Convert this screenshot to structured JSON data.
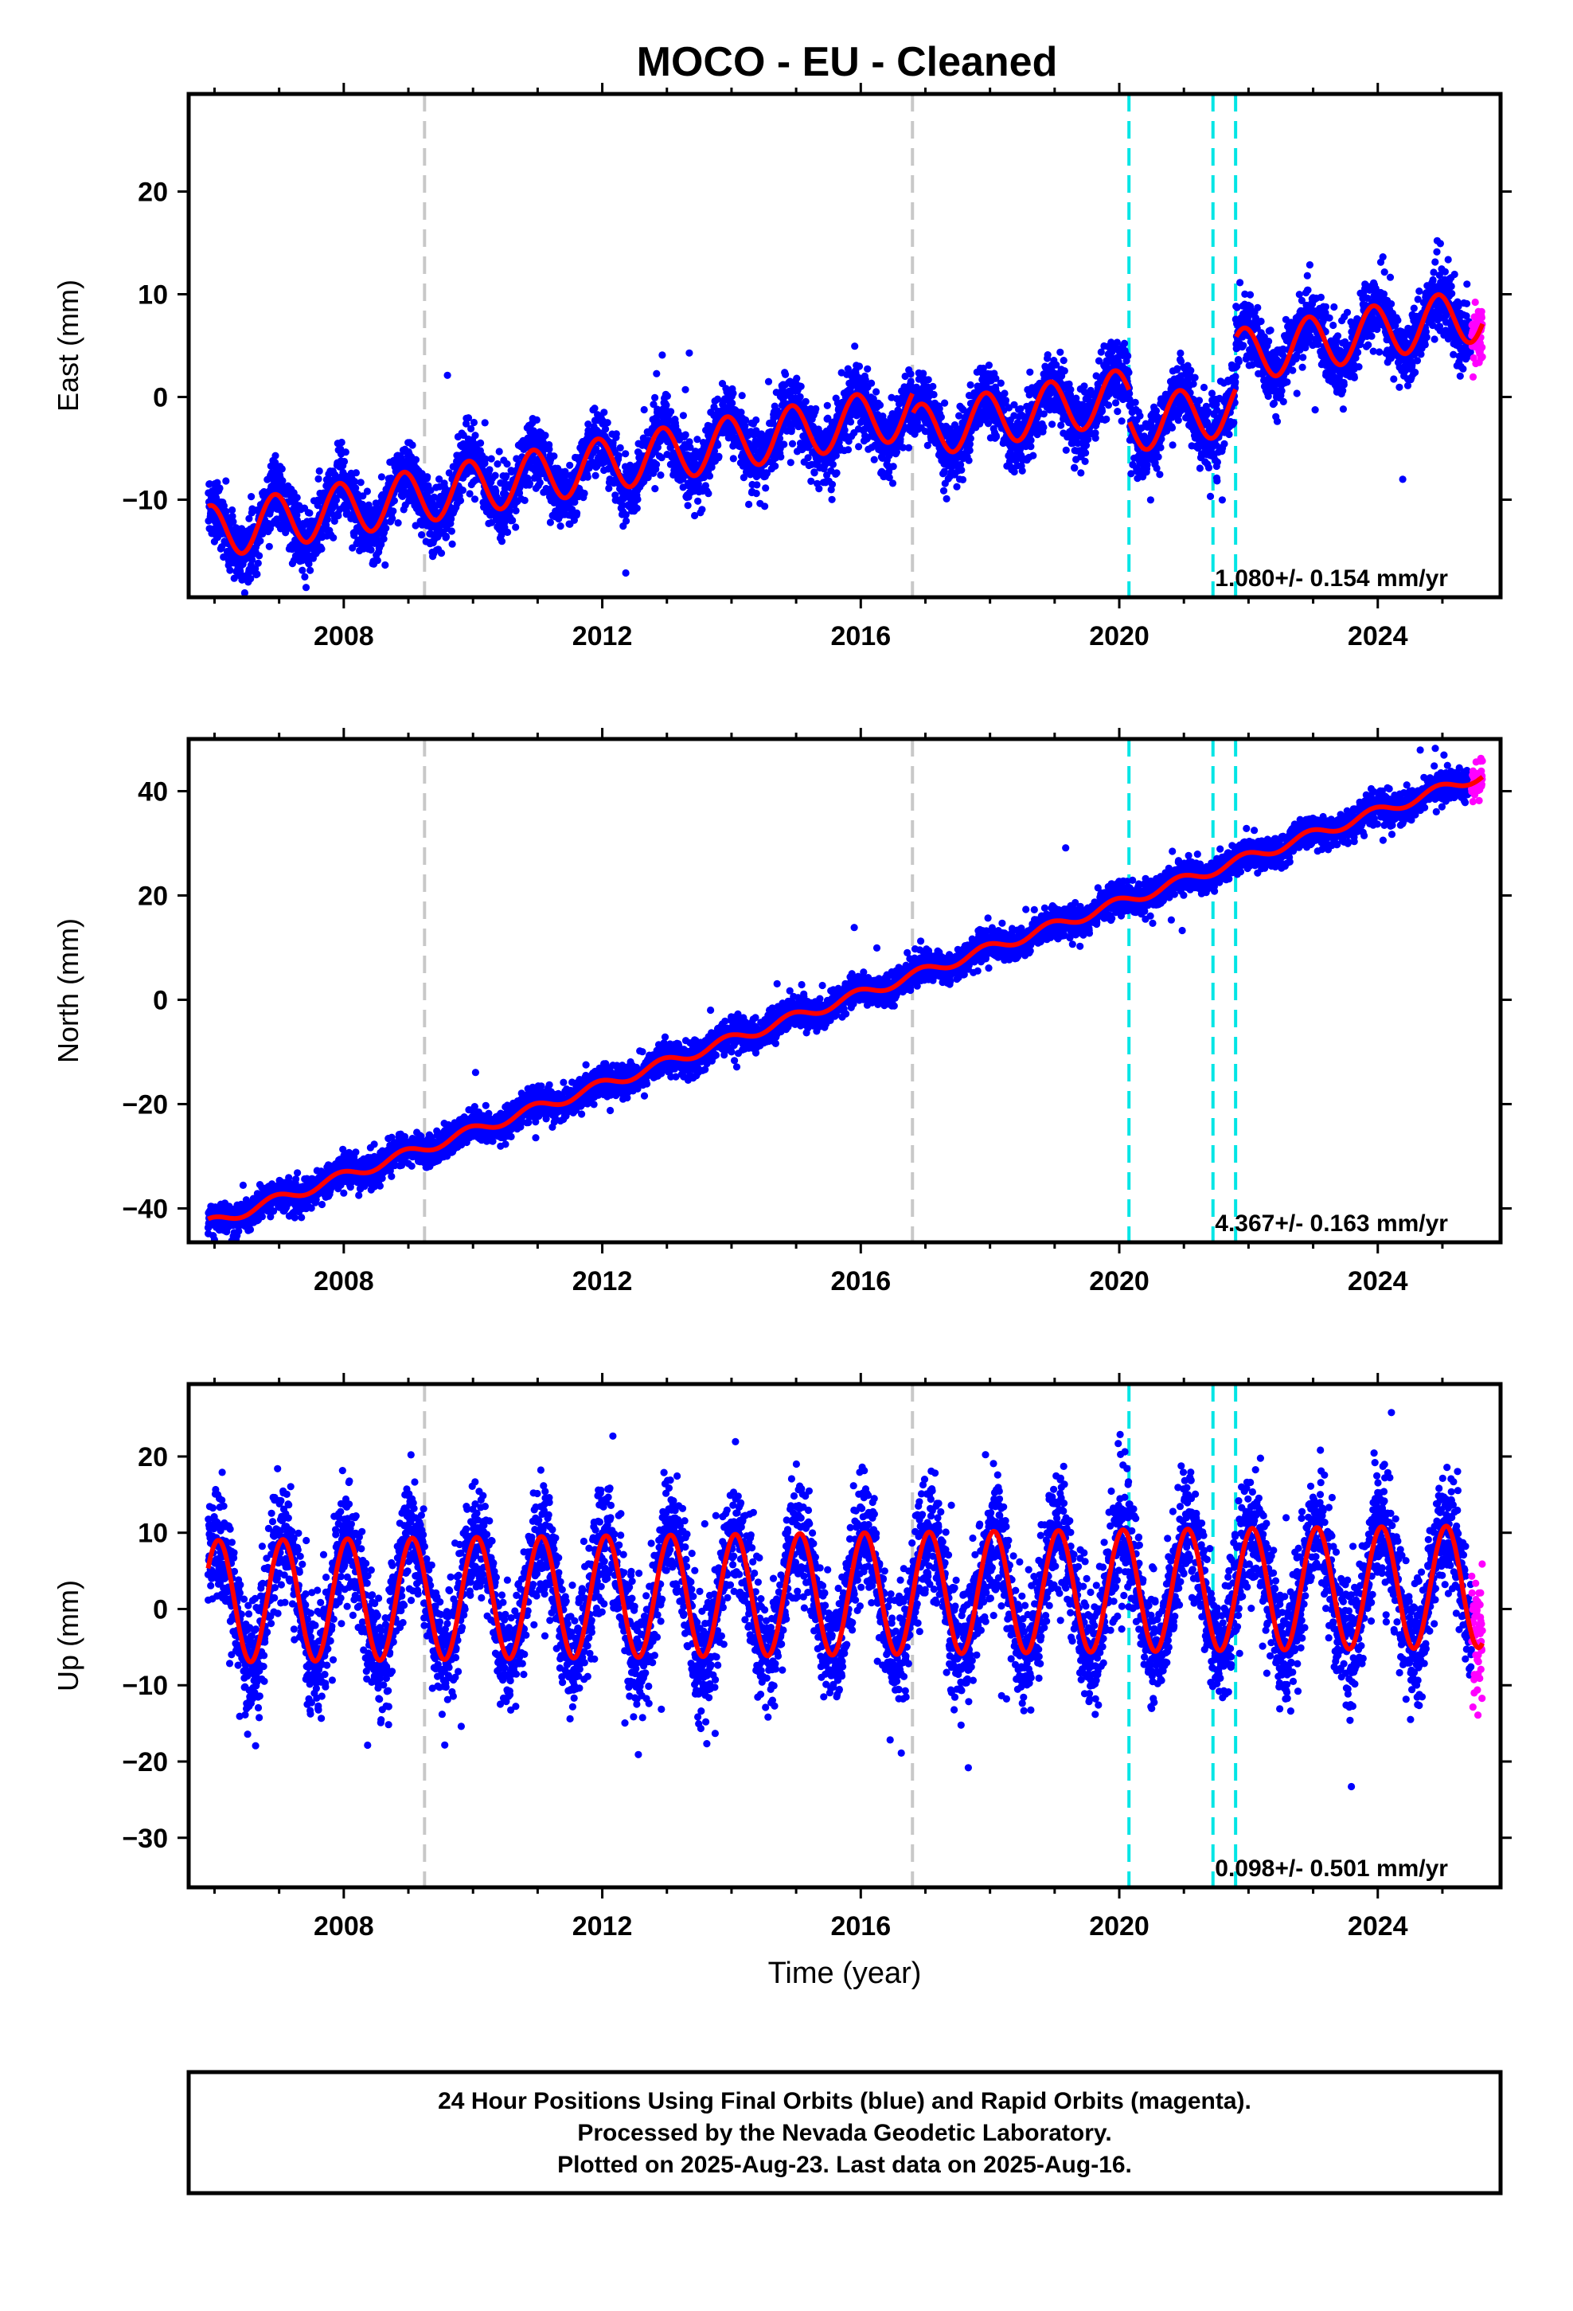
{
  "title": "MOCO  - EU - Cleaned",
  "footer": {
    "lines": [
      "24 Hour Positions Using Final Orbits (blue) and Rapid Orbits (magenta).",
      "Processed by the Nevada Geodetic Laboratory.",
      "Plotted on 2025-Aug-23. Last data on 2025-Aug-16."
    ]
  },
  "colors": {
    "final_orbits": "#0000ff",
    "rapid_orbits": "#ff00ff",
    "model": "#ff0000",
    "equipment_change": "#c8c8c8",
    "earthquake": "#00e5e5"
  },
  "chart_data": [
    {
      "type": "scatter",
      "ylabel": "East (mm)",
      "xlabel": "",
      "xlim": [
        2005.6,
        2025.9
      ],
      "ylim": [
        -19.5,
        29.5
      ],
      "xticks": [
        2008,
        2012,
        2016,
        2020,
        2024
      ],
      "yticks": [
        -10,
        0,
        10,
        20
      ],
      "rate_text": "1.080+/- 0.154 mm/yr",
      "series": [
        {
          "model": {
            "start": -13.2,
            "rate": 1.08,
            "amplitude": 2.6,
            "phase": 2.0,
            "offsets": [
              {
                "year": 2016.8,
                "value": -2.0
              },
              {
                "year": 2020.15,
                "value": -3.0
              },
              {
                "year": 2021.8,
                "value": 5.0
              }
            ],
            "noise_sd": 1.6
          }
        }
      ],
      "vertical_lines": {
        "gray": [
          2009.25,
          2016.8
        ],
        "cyan": [
          2020.15,
          2021.45,
          2021.8
        ]
      }
    },
    {
      "type": "scatter",
      "ylabel": "North (mm)",
      "xlabel": "",
      "xlim": [
        2005.6,
        2025.9
      ],
      "ylim": [
        -46.5,
        50
      ],
      "xticks": [
        2008,
        2012,
        2016,
        2020,
        2024
      ],
      "yticks": [
        -40,
        -20,
        0,
        20,
        40
      ],
      "rate_text": "4.367+/- 0.163 mm/yr",
      "series": [
        {
          "model": {
            "start": -43,
            "rate": 4.367,
            "amplitude": 1.0,
            "phase": 2.0,
            "offsets": [],
            "noise_sd": 1.5
          }
        }
      ],
      "vertical_lines": {
        "gray": [
          2009.25,
          2016.8
        ],
        "cyan": [
          2020.15,
          2021.45,
          2021.8
        ]
      }
    },
    {
      "type": "scatter",
      "ylabel": "Up (mm)",
      "xlabel": "Time (year)",
      "xlim": [
        2005.6,
        2025.9
      ],
      "ylim": [
        -36.5,
        29.5
      ],
      "xticks": [
        2008,
        2012,
        2016,
        2020,
        2024
      ],
      "yticks": [
        -30,
        -20,
        -10,
        0,
        10,
        20
      ],
      "rate_text": "0.098+/- 0.501 mm/yr",
      "series": [
        {
          "model": {
            "start": 1.0,
            "rate": 0.098,
            "amplitude": 8.0,
            "phase": 1.2,
            "offsets": [],
            "noise_sd": 3.8
          }
        }
      ],
      "vertical_lines": {
        "gray": [
          2009.25,
          2016.8
        ],
        "cyan": [
          2020.15,
          2021.45,
          2021.8
        ]
      }
    }
  ]
}
